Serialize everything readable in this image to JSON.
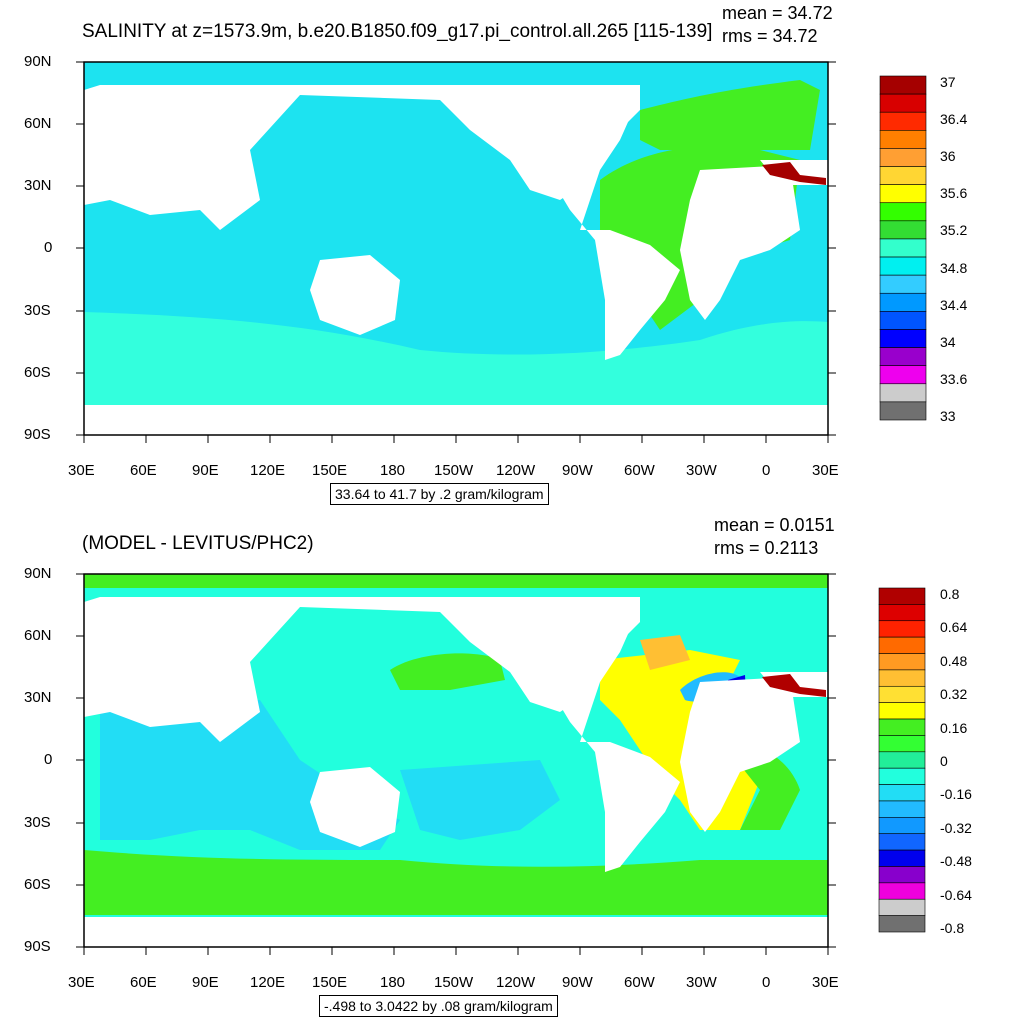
{
  "colors": {
    "land": "#ffffff",
    "frame": "#000000",
    "sea_ice_bg": "#ffffff"
  },
  "panels": [
    {
      "title": "SALINITY at z=1573.9m, b.e20.B1850.f09_g17.pi_control.all.265 [115-139]",
      "mean_text": "mean = 34.72",
      "rms_text": "rms = 34.72",
      "info_text": "33.64 to 41.7 by .2 gram/kilogram",
      "lat_labels": [
        "90N",
        "60N",
        "30N",
        "0",
        "30S",
        "60S",
        "90S"
      ],
      "lon_labels": [
        "30E",
        "60E",
        "90E",
        "120E",
        "150E",
        "180",
        "150W",
        "120W",
        "90W",
        "60W",
        "30W",
        "0",
        "30E"
      ],
      "colorbar": {
        "labels": [
          "37",
          "36.4",
          "36",
          "35.6",
          "35.2",
          "34.8",
          "34.4",
          "34",
          "33.6",
          "33"
        ],
        "colors": [
          "#a50000",
          "#d80000",
          "#ff2a00",
          "#ff7f00",
          "#ff9f33",
          "#ffd633",
          "#ffff00",
          "#33ff00",
          "#33dd33",
          "#33ffcc",
          "#00f0f0",
          "#33ccff",
          "#0099ff",
          "#0055ff",
          "#0000ff",
          "#9900cc",
          "#ee00ee",
          "#cccccc",
          "#707070"
        ]
      }
    },
    {
      "title": "(MODEL - LEVITUS/PHC2)",
      "mean_text": "mean = 0.0151",
      "rms_text": "rms = 0.2113",
      "info_text": "-.498 to 3.0422 by .08 gram/kilogram",
      "lat_labels": [
        "90N",
        "60N",
        "30N",
        "0",
        "30S",
        "60S",
        "90S"
      ],
      "lon_labels": [
        "30E",
        "60E",
        "90E",
        "120E",
        "150E",
        "180",
        "150W",
        "120W",
        "90W",
        "60W",
        "30W",
        "0",
        "30E"
      ],
      "colorbar": {
        "labels": [
          "0.8",
          "0.64",
          "0.48",
          "0.32",
          "0.16",
          "0",
          "-0.16",
          "-0.32",
          "-0.48",
          "-0.64",
          "-0.8"
        ],
        "colors": [
          "#b00000",
          "#dd0000",
          "#ff2200",
          "#ff6a00",
          "#ff9a22",
          "#ffbf33",
          "#ffe033",
          "#ffff00",
          "#44ee22",
          "#33ff33",
          "#22ee99",
          "#22ffdd",
          "#22ddf5",
          "#22bbff",
          "#1199ff",
          "#1166ff",
          "#0000ee",
          "#8800cc",
          "#ee00dd",
          "#cccccc",
          "#707070"
        ]
      }
    }
  ]
}
